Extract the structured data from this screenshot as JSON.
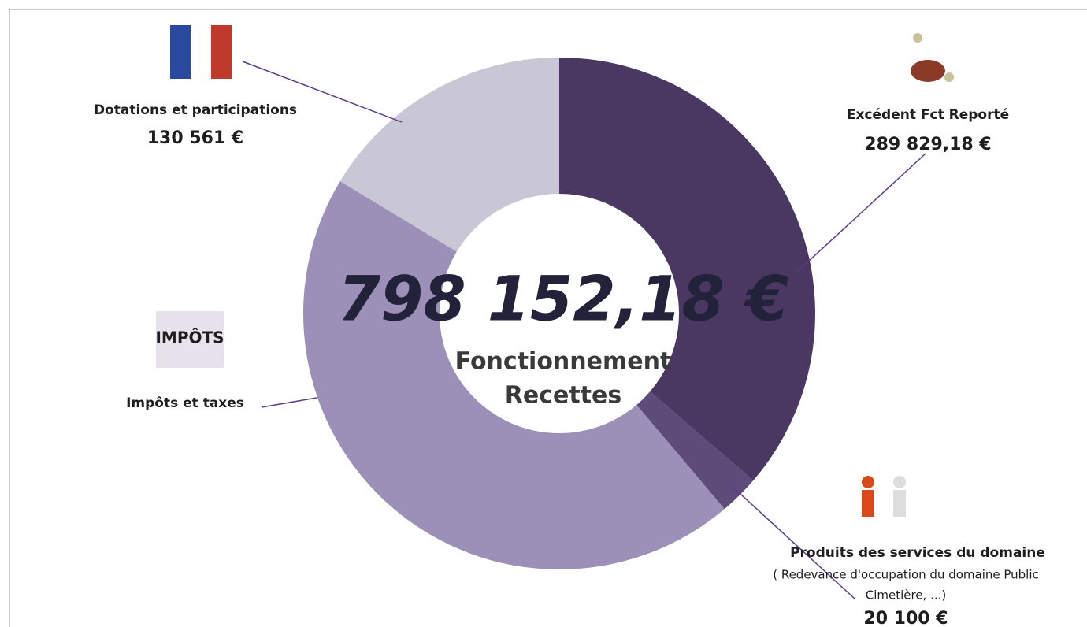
{
  "chart_data": {
    "type": "donut",
    "categories": [
      "Excédent Fct  Reporté",
      "Produits des services du domaine",
      "Impôts et taxes",
      "Dotations et participations"
    ],
    "values": [
      289829.18,
      20100,
      357662,
      130561
    ],
    "value_labels": [
      "289 829,18 €",
      "20 100 €",
      null,
      "130 561 €"
    ],
    "colors": [
      "#4b3862",
      "#5f4b7a",
      "#9c90b8",
      "#c9c7d6"
    ],
    "total": {
      "value": 798152.18,
      "label": "798 152,18 €"
    },
    "center_lines": [
      "Fonctionnement",
      "Recettes"
    ],
    "annotation_lines": [
      "( Redevance d'occupation du domaine Public",
      "Cimetière, ...)"
    ]
  }
}
